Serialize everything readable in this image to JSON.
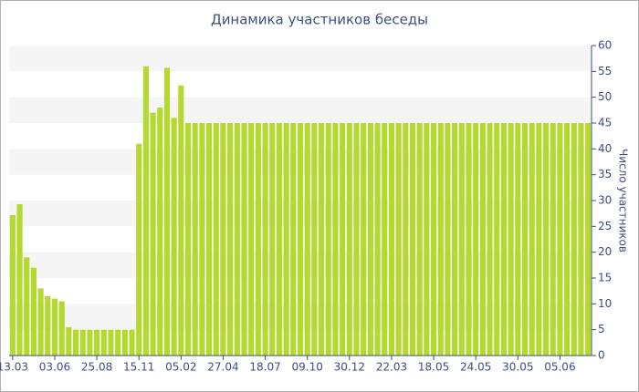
{
  "chart_data": {
    "type": "bar",
    "title": "Динамика участников беседы",
    "y_label": "Число участников",
    "categories": [
      "13.03",
      null,
      null,
      null,
      null,
      null,
      "03.06",
      null,
      null,
      null,
      null,
      null,
      "25.08",
      null,
      null,
      null,
      null,
      null,
      "15.11",
      null,
      null,
      null,
      null,
      null,
      "05.02",
      null,
      null,
      null,
      null,
      null,
      "27.04",
      null,
      null,
      null,
      null,
      null,
      "18.07",
      null,
      null,
      null,
      null,
      null,
      "09.10",
      null,
      null,
      null,
      null,
      null,
      "30.12",
      null,
      null,
      null,
      null,
      null,
      "22.03",
      null,
      null,
      null,
      null,
      null,
      "18.05",
      null,
      null,
      null,
      null,
      null,
      "24.05",
      null,
      null,
      null,
      null,
      null,
      "30.05",
      null,
      null,
      null,
      null,
      null,
      "05.06",
      null,
      null,
      null,
      null
    ],
    "values": [
      27.2,
      29.3,
      19,
      17,
      13,
      11.5,
      11,
      10.5,
      5.5,
      5,
      5,
      5,
      5,
      5,
      5,
      5,
      5,
      5,
      41,
      56,
      47,
      48,
      55.7,
      46,
      52.3,
      45,
      45,
      45,
      45,
      45,
      45,
      45,
      45,
      45,
      45,
      45,
      45,
      45,
      45,
      45,
      45,
      45,
      45,
      45,
      45,
      45,
      45,
      45,
      45,
      45,
      45,
      45,
      45,
      45,
      45,
      45,
      45,
      45,
      45,
      45,
      45,
      45,
      45,
      45,
      45,
      45,
      45,
      45,
      45,
      45,
      45,
      45,
      45,
      45,
      45,
      45,
      45,
      45,
      45,
      45,
      45,
      45,
      45
    ],
    "color": "#b5d931",
    "ylim": [
      0,
      60
    ],
    "yticks": [
      0,
      5,
      10,
      15,
      20,
      25,
      30,
      35,
      40,
      45,
      50,
      55,
      60
    ],
    "y_axis_side": "right",
    "grid": "bands"
  }
}
